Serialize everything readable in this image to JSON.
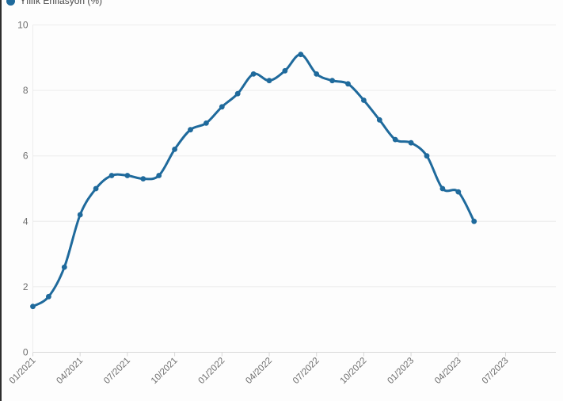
{
  "legend": {
    "label": "Yıllık Enflasyon (%)"
  },
  "colors": {
    "line": "#1f6a9c",
    "point": "#1f6a9c",
    "legend_dot": "#1f6a9c",
    "grid": "#ececec",
    "axis": "#d8d8d8",
    "tick_text": "#6e6e6e",
    "legend_text": "#4a4a4a",
    "left_border": "#2e2e2e",
    "background": "#fdfdfd"
  },
  "chart_data": {
    "type": "line",
    "title": "",
    "series_name": "Yıllık Enflasyon (%)",
    "x": [
      "01/2021",
      "02/2021",
      "03/2021",
      "04/2021",
      "05/2021",
      "06/2021",
      "07/2021",
      "08/2021",
      "09/2021",
      "10/2021",
      "11/2021",
      "12/2021",
      "01/2022",
      "02/2022",
      "03/2022",
      "04/2022",
      "05/2022",
      "06/2022",
      "07/2022",
      "08/2022",
      "09/2022",
      "10/2022",
      "11/2022",
      "12/2022",
      "01/2023",
      "02/2023",
      "03/2023",
      "04/2023",
      "05/2023"
    ],
    "values": [
      1.4,
      1.7,
      2.6,
      4.2,
      5.0,
      5.4,
      5.4,
      5.3,
      5.4,
      6.2,
      6.8,
      7.0,
      7.5,
      7.9,
      8.5,
      8.3,
      8.6,
      9.1,
      8.5,
      8.3,
      8.2,
      7.7,
      7.1,
      6.5,
      6.4,
      6.0,
      5.0,
      4.9,
      4.0
    ],
    "x_tick_labels": [
      "01/2021",
      "04/2021",
      "07/2021",
      "10/2021",
      "01/2022",
      "04/2022",
      "07/2022",
      "10/2022",
      "01/2023",
      "04/2023",
      "07/2023"
    ],
    "x_tick_month_step": 3,
    "x_axis_total_months": 30,
    "y_ticks": [
      0,
      2,
      4,
      6,
      8,
      10
    ],
    "ylim": [
      0,
      10
    ],
    "xlabel": "",
    "ylabel": "",
    "grid": "horizontal-only",
    "legend_position": "top-left",
    "marker": "filled-circle",
    "smooth": true
  }
}
